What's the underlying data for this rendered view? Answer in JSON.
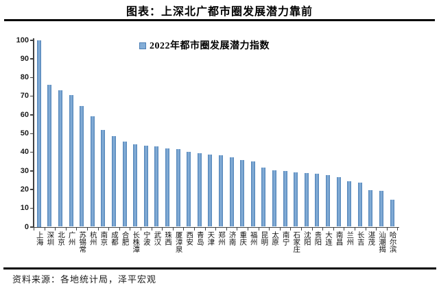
{
  "page": {
    "title": "图表：上深北广都市圈发展潜力靠前",
    "source": "资料来源：各地统计局，泽平宏观"
  },
  "legend": {
    "label": "2022年都市圈发展潜力指数"
  },
  "colors": {
    "bar_fill": "#84AED7",
    "bar_edge": "#4D7FB5",
    "axis": "#404040",
    "rule": "#000000"
  },
  "chart_data": {
    "type": "bar",
    "title": "图表：上深北广都市圈发展潜力靠前",
    "legend": [
      "2022年都市圈发展潜力指数"
    ],
    "legend_position": "top-center",
    "grid": false,
    "xlabel": "",
    "ylabel": "",
    "ylim": [
      0,
      100
    ],
    "ytick_interval": 10,
    "categories": [
      "上海",
      "深圳",
      "北京",
      "广州",
      "苏锡常",
      "杭州",
      "南京",
      "成都",
      "合肥",
      "长株潭",
      "宁波",
      "武汉",
      "珠西",
      "厦漳泉",
      "西安",
      "青岛",
      "天津",
      "郑州",
      "济南",
      "重庆",
      "福州",
      "昆明",
      "太原",
      "南宁",
      "石家庄",
      "沈阳",
      "贵阳",
      "大连",
      "南昌",
      "兰州",
      "长吉",
      "湛茂",
      "汕潮揭",
      "哈尔滨"
    ],
    "values": [
      100,
      76,
      73,
      70.5,
      64.5,
      59,
      52,
      48.5,
      45.5,
      44,
      43.5,
      43,
      42,
      41.5,
      40,
      39.5,
      38.8,
      38.2,
      37.3,
      35.7,
      34.8,
      31.8,
      30.4,
      30,
      29.2,
      28.7,
      28.3,
      27.7,
      26.6,
      24.3,
      23.5,
      19.5,
      19.2,
      14.5
    ],
    "source_note": "资料来源：各地统计局，泽平宏观"
  }
}
